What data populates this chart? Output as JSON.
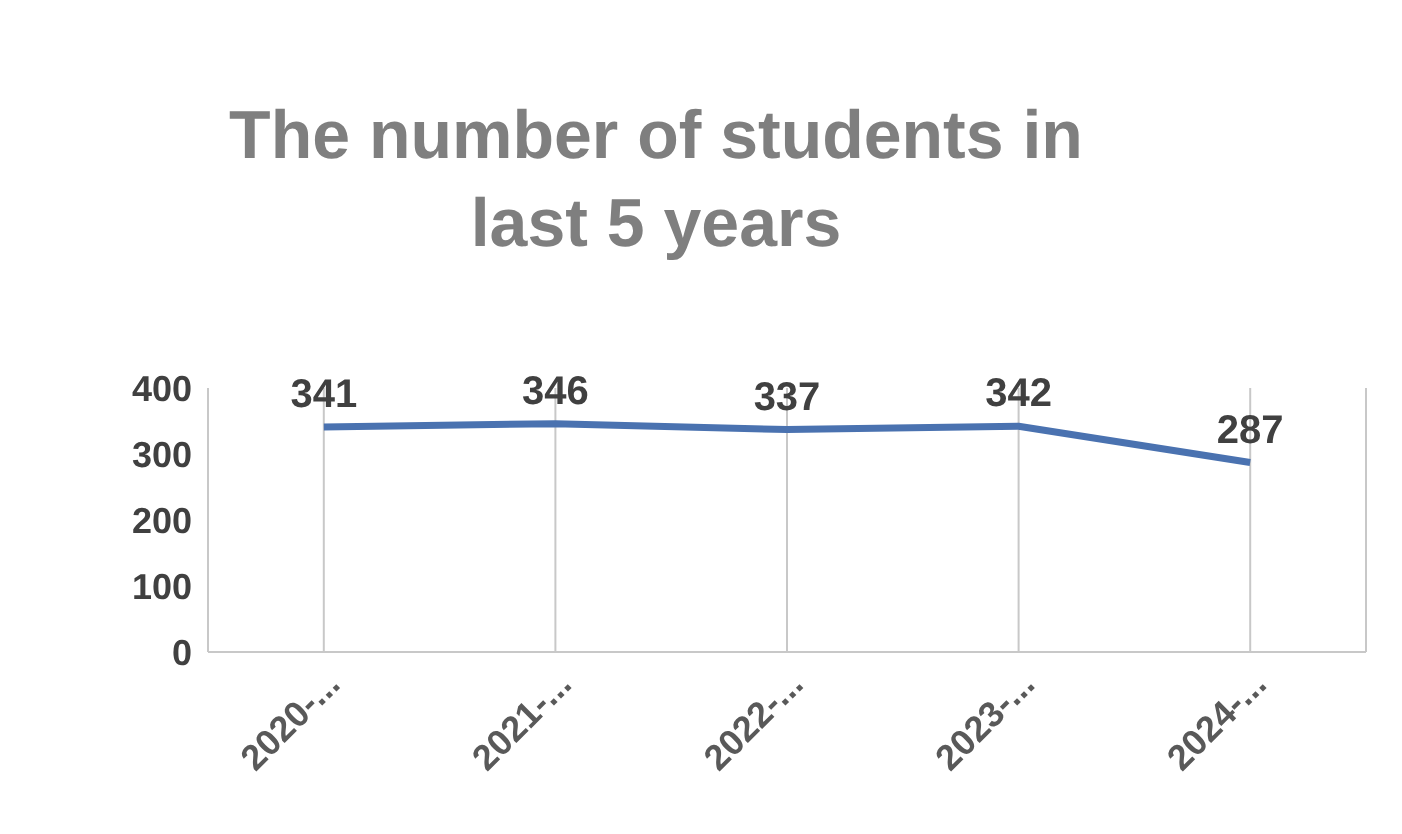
{
  "chart_data": {
    "type": "line",
    "title": "The number of students in last 5 years",
    "categories": [
      "2020-...",
      "2021-...",
      "2022-...",
      "2023-...",
      "2024-..."
    ],
    "values": [
      341,
      346,
      337,
      342,
      287
    ],
    "color": "#4a72b0",
    "ylim": [
      0,
      400
    ],
    "yticks": [
      0,
      100,
      200,
      300,
      400
    ],
    "grid": "x",
    "data_labels": true,
    "marker": "none",
    "line_style": "solid"
  }
}
